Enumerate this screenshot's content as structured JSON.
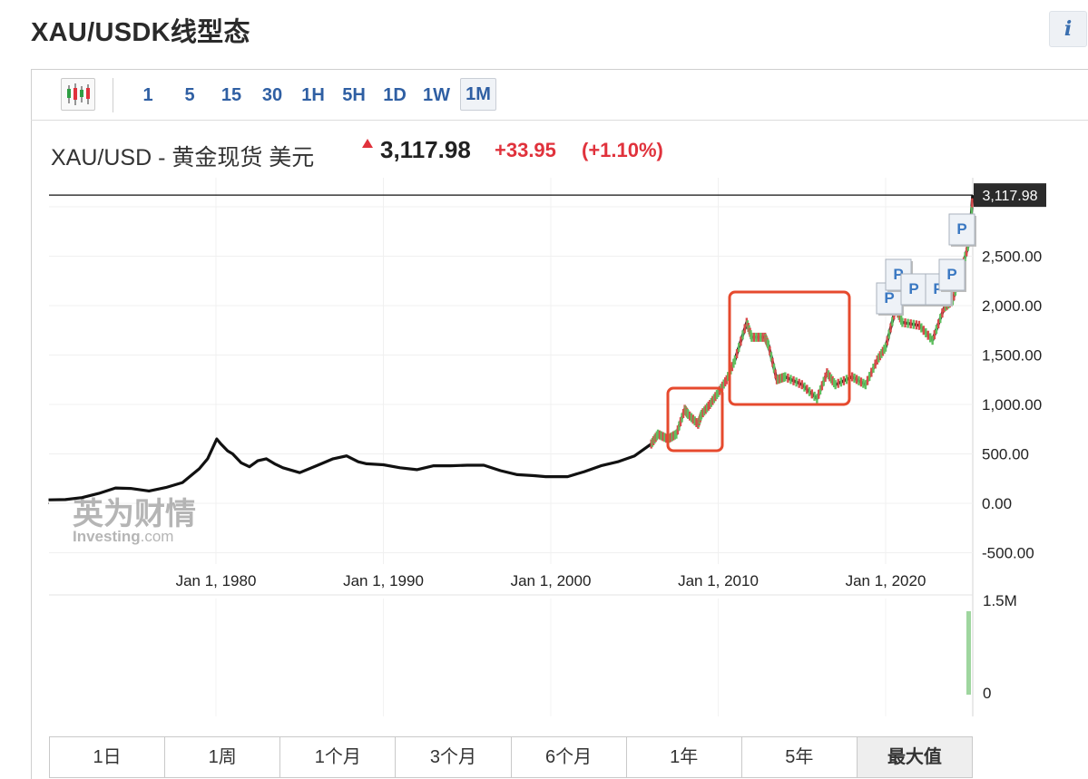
{
  "header": {
    "title": "XAU/USDK线型态",
    "info_icon": "info-icon"
  },
  "toolbar": {
    "chart_type_icon": "candlestick-icon",
    "timeframes": [
      "1",
      "5",
      "15",
      "30",
      "1H",
      "5H",
      "1D",
      "1W",
      "1M"
    ],
    "active_timeframe": "1M"
  },
  "quote": {
    "name": "XAU/USD - 黄金现货 美元",
    "price": "3,117.98",
    "change": "+33.95",
    "change_pct": "(+1.10%)",
    "up_color": "#e0323c",
    "direction_icon": "up-arrow-icon"
  },
  "watermark": {
    "cn": "英为财情",
    "en": "Investing",
    "suffix": ".com"
  },
  "chart_data": {
    "type": "line",
    "title": "",
    "xlabel": "",
    "ylabel": "",
    "x_ticks": [
      "Jan 1, 1980",
      "Jan 1, 1990",
      "Jan 1, 2000",
      "Jan 1, 2010",
      "Jan 1, 2020"
    ],
    "y_ticks": [
      "2,500.00",
      "2,000.00",
      "1,500.00",
      "1,000.00",
      "500.00",
      "0.00",
      "-500.00"
    ],
    "ylim": [
      -500,
      3117.98
    ],
    "last_value_label": "3,117.98",
    "grid": true,
    "series": [
      {
        "x": [
          1970.0,
          1971.0,
          1972.0,
          1973.0,
          1974.0,
          1974.9,
          1976.0,
          1977.0,
          1978.0,
          1979.0,
          1979.5,
          1980.05,
          1980.3,
          1980.7,
          1981.0,
          1981.5,
          1982.0,
          1982.5,
          1983.0,
          1983.5,
          1984.0,
          1985.0,
          1986.0,
          1987.0,
          1987.8,
          1988.5,
          1989.0,
          1990.0,
          1991.0,
          1992.0,
          1993.0,
          1994.0,
          1995.0,
          1996.0,
          1997.0,
          1998.0,
          1999.0,
          1999.7,
          2001.0,
          2002.0,
          2003.0,
          2004.0,
          2005.0,
          2006.0,
          2006.4,
          2007.0,
          2007.5,
          2008.0,
          2008.2,
          2008.8,
          2009.0,
          2009.5,
          2010.0,
          2010.5,
          2011.0,
          2011.7,
          2012.0,
          2012.8,
          2013.0,
          2013.5,
          2014.0,
          2015.0,
          2015.9,
          2016.5,
          2017.0,
          2018.0,
          2018.8,
          2019.5,
          2020.0,
          2020.6,
          2021.0,
          2022.0,
          2022.8,
          2023.5,
          2024.0,
          2024.5,
          2025.0,
          2025.2
        ],
        "values": [
          35,
          38,
          58,
          100,
          155,
          150,
          125,
          160,
          210,
          350,
          450,
          650,
          600,
          530,
          500,
          410,
          370,
          430,
          450,
          400,
          360,
          310,
          380,
          450,
          480,
          420,
          400,
          390,
          360,
          340,
          380,
          380,
          385,
          385,
          330,
          290,
          280,
          270,
          270,
          320,
          380,
          420,
          480,
          600,
          700,
          650,
          700,
          950,
          900,
          800,
          900,
          1000,
          1120,
          1250,
          1450,
          1830,
          1680,
          1680,
          1600,
          1250,
          1280,
          1200,
          1060,
          1320,
          1200,
          1280,
          1200,
          1450,
          1580,
          1970,
          1830,
          1800,
          1650,
          1980,
          2050,
          2340,
          2650,
          3117.98
        ]
      }
    ],
    "volume_ticks": [
      "1.5M",
      "0"
    ],
    "markers": [
      "P",
      "P",
      "P",
      "P",
      "P",
      "P"
    ],
    "highlight_color": "#e64a2e"
  },
  "range": {
    "options": [
      "1日",
      "1周",
      "1个月",
      "3个月",
      "6个月",
      "1年",
      "5年",
      "最大值"
    ],
    "active": "最大值"
  }
}
